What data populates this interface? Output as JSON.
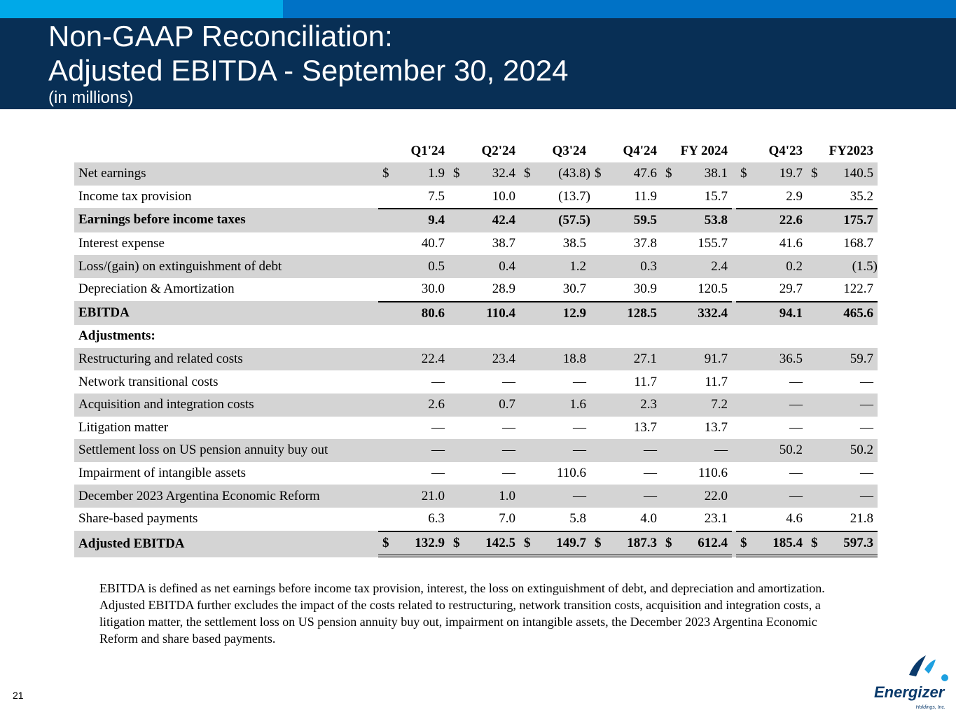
{
  "header": {
    "title_line1": "Non-GAAP Reconciliation:",
    "title_line2": "Adjusted EBITDA - September 30, 2024",
    "subtitle": "(in millions)"
  },
  "table": {
    "columns": [
      "Q1'24",
      "Q2'24",
      "Q3'24",
      "Q4'24",
      "FY 2024",
      "Q4'23",
      "FY2023"
    ],
    "rows": [
      {
        "label": "Net earnings",
        "values": [
          "1.9",
          "32.4",
          "(43.8)",
          "47.6",
          "38.1",
          "19.7",
          "140.5"
        ],
        "currency": true,
        "bold": false,
        "shaded": true
      },
      {
        "label": "Income tax provision",
        "values": [
          "7.5",
          "10.0",
          "(13.7)",
          "11.9",
          "15.7",
          "2.9",
          "35.2"
        ],
        "currency": false,
        "bold": false,
        "shaded": false
      },
      {
        "label": "Earnings before income taxes",
        "values": [
          "9.4",
          "42.4",
          "(57.5)",
          "59.5",
          "53.8",
          "22.6",
          "175.7"
        ],
        "currency": false,
        "bold": true,
        "shaded": true,
        "rule_above": true
      },
      {
        "label": "Interest expense",
        "values": [
          "40.7",
          "38.7",
          "38.5",
          "37.8",
          "155.7",
          "41.6",
          "168.7"
        ],
        "currency": false,
        "bold": false,
        "shaded": false
      },
      {
        "label": "Loss/(gain) on extinguishment of debt",
        "values": [
          "0.5",
          "0.4",
          "1.2",
          "0.3",
          "2.4",
          "0.2",
          "(1.5)"
        ],
        "currency": false,
        "bold": false,
        "shaded": true
      },
      {
        "label": "Depreciation & Amortization",
        "values": [
          "30.0",
          "28.9",
          "30.7",
          "30.9",
          "120.5",
          "29.7",
          "122.7"
        ],
        "currency": false,
        "bold": false,
        "shaded": false
      },
      {
        "label": "EBITDA",
        "values": [
          "80.6",
          "110.4",
          "12.9",
          "128.5",
          "332.4",
          "94.1",
          "465.6"
        ],
        "currency": false,
        "bold": true,
        "shaded": true,
        "rule_above": true
      },
      {
        "label": "Adjustments:",
        "values": [
          "",
          "",
          "",
          "",
          "",
          "",
          ""
        ],
        "currency": false,
        "bold": true,
        "shaded": false
      },
      {
        "label": "Restructuring and related costs",
        "values": [
          "22.4",
          "23.4",
          "18.8",
          "27.1",
          "91.7",
          "36.5",
          "59.7"
        ],
        "currency": false,
        "bold": false,
        "shaded": true
      },
      {
        "label": "Network transitional costs",
        "values": [
          "—",
          "—",
          "—",
          "11.7",
          "11.7",
          "—",
          "—"
        ],
        "currency": false,
        "bold": false,
        "shaded": false
      },
      {
        "label": "Acquisition and integration costs",
        "values": [
          "2.6",
          "0.7",
          "1.6",
          "2.3",
          "7.2",
          "—",
          "—"
        ],
        "currency": false,
        "bold": false,
        "shaded": true
      },
      {
        "label": "Litigation matter",
        "values": [
          "—",
          "—",
          "—",
          "13.7",
          "13.7",
          "—",
          "—"
        ],
        "currency": false,
        "bold": false,
        "shaded": false
      },
      {
        "label": "Settlement loss on US pension annuity buy out",
        "values": [
          "—",
          "—",
          "—",
          "—",
          "—",
          "50.2",
          "50.2"
        ],
        "currency": false,
        "bold": false,
        "shaded": true
      },
      {
        "label": "Impairment of intangible assets",
        "values": [
          "—",
          "—",
          "110.6",
          "—",
          "110.6",
          "—",
          "—"
        ],
        "currency": false,
        "bold": false,
        "shaded": false
      },
      {
        "label": "December 2023 Argentina Economic Reform",
        "values": [
          "21.0",
          "1.0",
          "—",
          "—",
          "22.0",
          "—",
          "—"
        ],
        "currency": false,
        "bold": false,
        "shaded": true
      },
      {
        "label": "Share-based payments",
        "values": [
          "6.3",
          "7.0",
          "5.8",
          "4.0",
          "23.1",
          "4.6",
          "21.8"
        ],
        "currency": false,
        "bold": false,
        "shaded": false
      },
      {
        "label": "Adjusted EBITDA",
        "values": [
          "132.9",
          "142.5",
          "149.7",
          "187.3",
          "612.4",
          "185.4",
          "597.3"
        ],
        "currency": true,
        "bold": true,
        "shaded": true,
        "rule_above": true,
        "double_below": true
      }
    ],
    "currency_symbol": "$"
  },
  "footnote": "EBITDA is defined as net earnings before income tax provision, interest, the loss on extinguishment of debt, and depreciation and amortization. Adjusted EBITDA further excludes the impact of the costs related to restructuring, network transition costs, acquisition and integration costs, a litigation matter, the settlement loss on US pension annuity buy out, impairment on intangible assets, the December 2023 Argentina Economic Reform and share based payments.",
  "page_number": "21",
  "logo": {
    "text": "Energizer",
    "subtext": "Holdings, Inc.",
    "colors": {
      "dark": "#0a3a6b",
      "light": "#1ea0e0"
    }
  },
  "colors": {
    "header_bg": "#082f55",
    "bar_light": "#00a9e8",
    "bar_mid": "#0072c6",
    "row_shade": "#d4d4d4"
  }
}
